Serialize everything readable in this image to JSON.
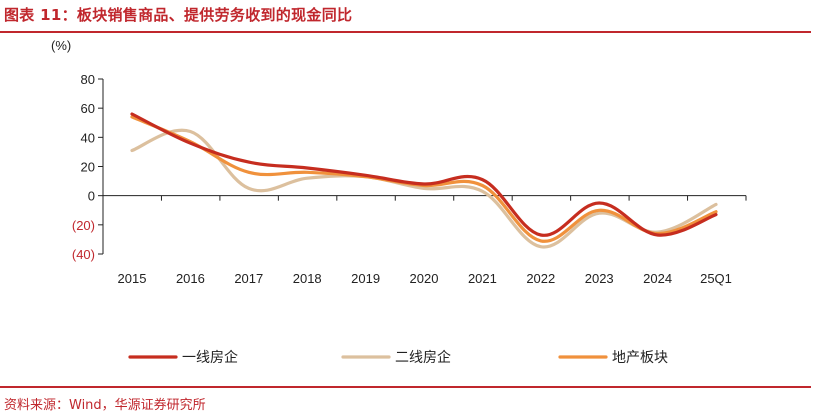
{
  "title": "图表 11：板块销售商品、提供劳务收到的现金同比",
  "source": "资料来源：Wind，华源证券研究所",
  "chart_data": {
    "type": "line",
    "unit_label": "(%)",
    "categories": [
      "2015",
      "2016",
      "2017",
      "2018",
      "2019",
      "2020",
      "2021",
      "2022",
      "2023",
      "2024",
      "25Q1"
    ],
    "yticks": [
      "80",
      "60",
      "40",
      "20",
      "0",
      "(20)",
      "(40)"
    ],
    "ylim": [
      -40,
      80
    ],
    "grid": false,
    "legend_position": "bottom",
    "series": [
      {
        "name": "一线房企",
        "color": "#c62d1f",
        "values": [
          56,
          36,
          23,
          19,
          14,
          8,
          11,
          -27,
          -5,
          -27,
          -13
        ]
      },
      {
        "name": "二线房企",
        "color": "#dcc09e",
        "values": [
          31,
          44,
          5,
          12,
          13,
          5,
          3,
          -35,
          -12,
          -25,
          -6
        ]
      },
      {
        "name": "地产板块",
        "color": "#f0913c",
        "values": [
          54,
          37,
          16,
          16,
          13,
          7,
          7,
          -31,
          -10,
          -26,
          -11
        ]
      }
    ]
  }
}
